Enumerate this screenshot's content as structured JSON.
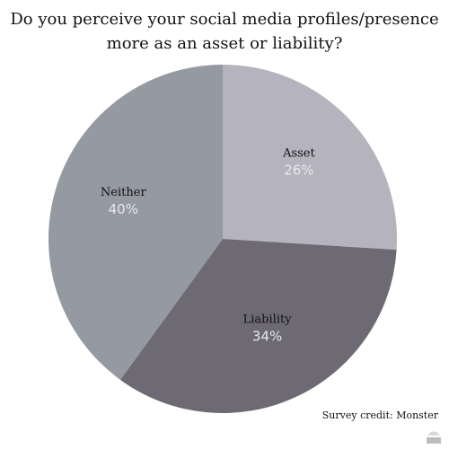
{
  "chart_data": {
    "type": "pie",
    "title_lines": [
      "Do you perceive your social media profiles/presence",
      "more as an asset or liability?"
    ],
    "slices": [
      {
        "name": "Asset",
        "value": 26,
        "label": "26%",
        "color": "#b5b3bd"
      },
      {
        "name": "Liability",
        "value": 34,
        "label": "34%",
        "color": "#6d6a73"
      },
      {
        "name": "Neither",
        "value": 40,
        "label": "40%",
        "color": "#9499a2"
      }
    ],
    "start": "top",
    "direction": "clockwise",
    "legend": "none"
  },
  "credit": "Survey credit: Monster",
  "watermark": "visme"
}
